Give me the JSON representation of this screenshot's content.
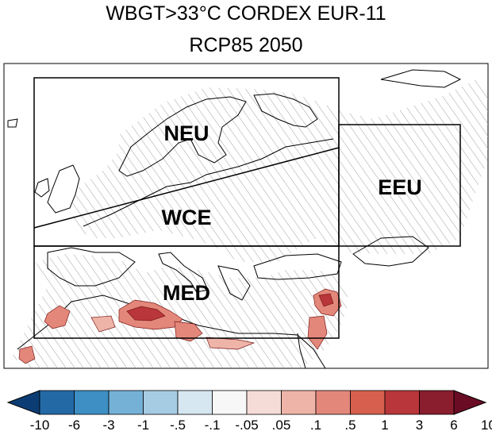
{
  "title": {
    "line1": "WBGT>33°C CORDEX EUR-11",
    "line2": "RCP85 2050"
  },
  "regions": [
    {
      "code": "NEU"
    },
    {
      "code": "WCE"
    },
    {
      "code": "MED"
    },
    {
      "code": "EEU"
    }
  ],
  "colorbar": {
    "labels": [
      "-10",
      "-6",
      "-3",
      "-1",
      "-.5",
      "-.1",
      "-.05",
      ".05",
      ".1",
      ".5",
      "1",
      "3",
      "6",
      "10"
    ],
    "colors": [
      "#0b3d74",
      "#2369a6",
      "#3d8fc4",
      "#75b1d7",
      "#a6cce4",
      "#d6e7f1",
      "#f7f7f7",
      "#f6dcd6",
      "#eeb4a8",
      "#e3877a",
      "#d6604d",
      "#b9363a",
      "#8a1d2e",
      "#6a0c24"
    ]
  },
  "style": {
    "hatch_color": "#a0a0a0",
    "land_signal_color": "#e3877a",
    "land_signal_dark": "#b9363a"
  }
}
